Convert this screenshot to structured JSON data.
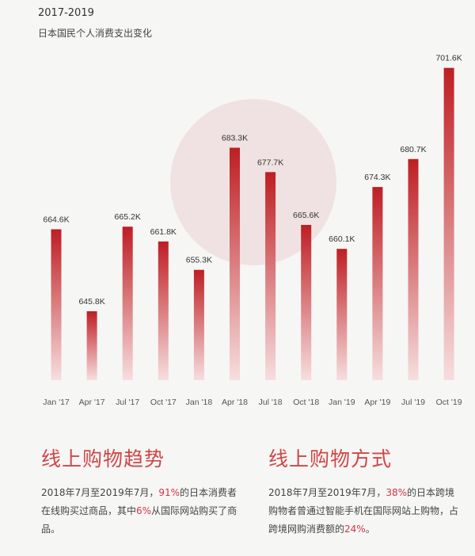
{
  "header": {
    "years": "2017-2019",
    "subtitle": "日本国民个人消费支出变化"
  },
  "chart_data": {
    "type": "bar",
    "categories": [
      "Jan '17",
      "Apr '17",
      "Jul '17",
      "Oct '17",
      "Jan '18",
      "Apr '18",
      "Jul '18",
      "Oct '18",
      "Jan '19",
      "Apr '19",
      "Jul '19",
      "Oct '19"
    ],
    "values": [
      664.6,
      645.8,
      665.2,
      661.8,
      655.3,
      683.3,
      677.7,
      665.6,
      660.1,
      674.3,
      680.7,
      701.6
    ],
    "value_labels": [
      "664.6K",
      "645.8K",
      "665.2K",
      "661.8K",
      "655.3K",
      "683.3K",
      "677.7K",
      "665.6K",
      "660.1K",
      "674.3K",
      "680.7K",
      "701.6K"
    ],
    "title": "日本国民个人消费支出变化",
    "ylim": [
      630,
      705
    ],
    "colors": {
      "bar_top": "#be1e23",
      "bar_bottom": "#f7dede",
      "circle": "#f0e2e2"
    }
  },
  "sections": {
    "left": {
      "title": "线上购物趋势",
      "p1": "2018年7月至2019年7月，",
      "hl1": "91%",
      "p2": "的日本消费者在线购买过商品，其中",
      "hl2": "6%",
      "p3": "从国际网站购买了商品。"
    },
    "right": {
      "title": "线上购物方式",
      "p1": "2018年7月至2019年7月，",
      "hl1": "38%",
      "p2": "的日本跨境购物者曾通过智能手机在国际网站上购物，占跨境网购消费额的",
      "hl2": "24%",
      "p3": "。"
    }
  }
}
